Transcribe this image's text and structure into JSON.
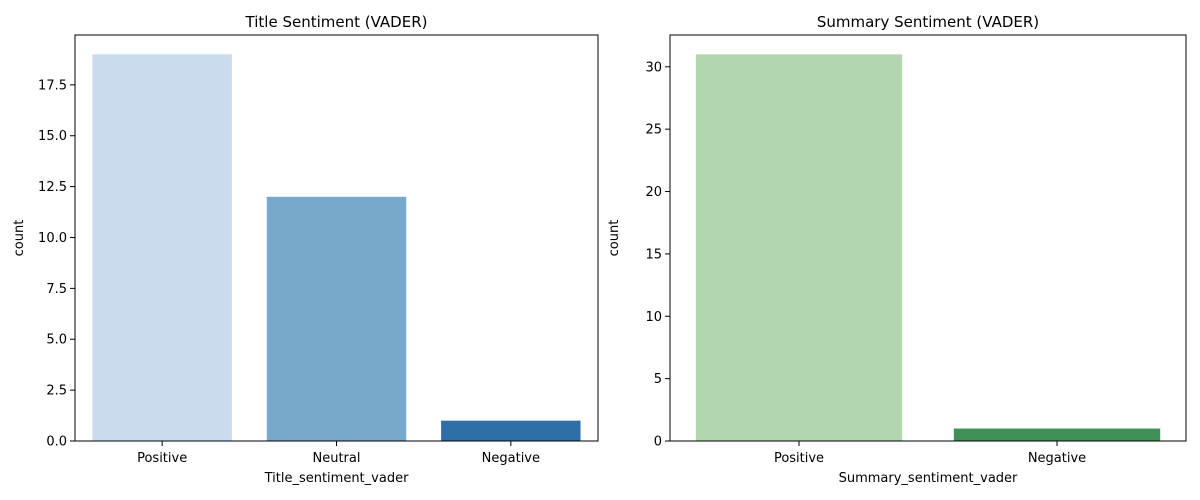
{
  "chart_data": [
    {
      "type": "bar",
      "title": "Title Sentiment (VADER)",
      "xlabel": "Title_sentiment_vader",
      "ylabel": "count",
      "categories": [
        "Positive",
        "Neutral",
        "Negative"
      ],
      "values": [
        19,
        12,
        1
      ],
      "colors": [
        "#c9dbec",
        "#77a9cb",
        "#2f6fa8"
      ],
      "ylim": [
        0,
        19.95
      ],
      "yticks": [
        0,
        2.5,
        5,
        7.5,
        10,
        12.5,
        15,
        17.5
      ],
      "ytick_labels": [
        "0.0",
        "2.5",
        "5.0",
        "7.5",
        "10.0",
        "12.5",
        "15.0",
        "17.5"
      ],
      "grid": false
    },
    {
      "type": "bar",
      "title": "Summary Sentiment (VADER)",
      "xlabel": "Summary_sentiment_vader",
      "ylabel": "count",
      "categories": [
        "Positive",
        "Negative"
      ],
      "values": [
        31,
        1
      ],
      "colors": [
        "#b2d7ae",
        "#3f9157"
      ],
      "ylim": [
        0,
        32.55
      ],
      "yticks": [
        0,
        5,
        10,
        15,
        20,
        25,
        30
      ],
      "ytick_labels": [
        "0",
        "5",
        "10",
        "15",
        "20",
        "25",
        "30"
      ],
      "grid": false
    }
  ]
}
